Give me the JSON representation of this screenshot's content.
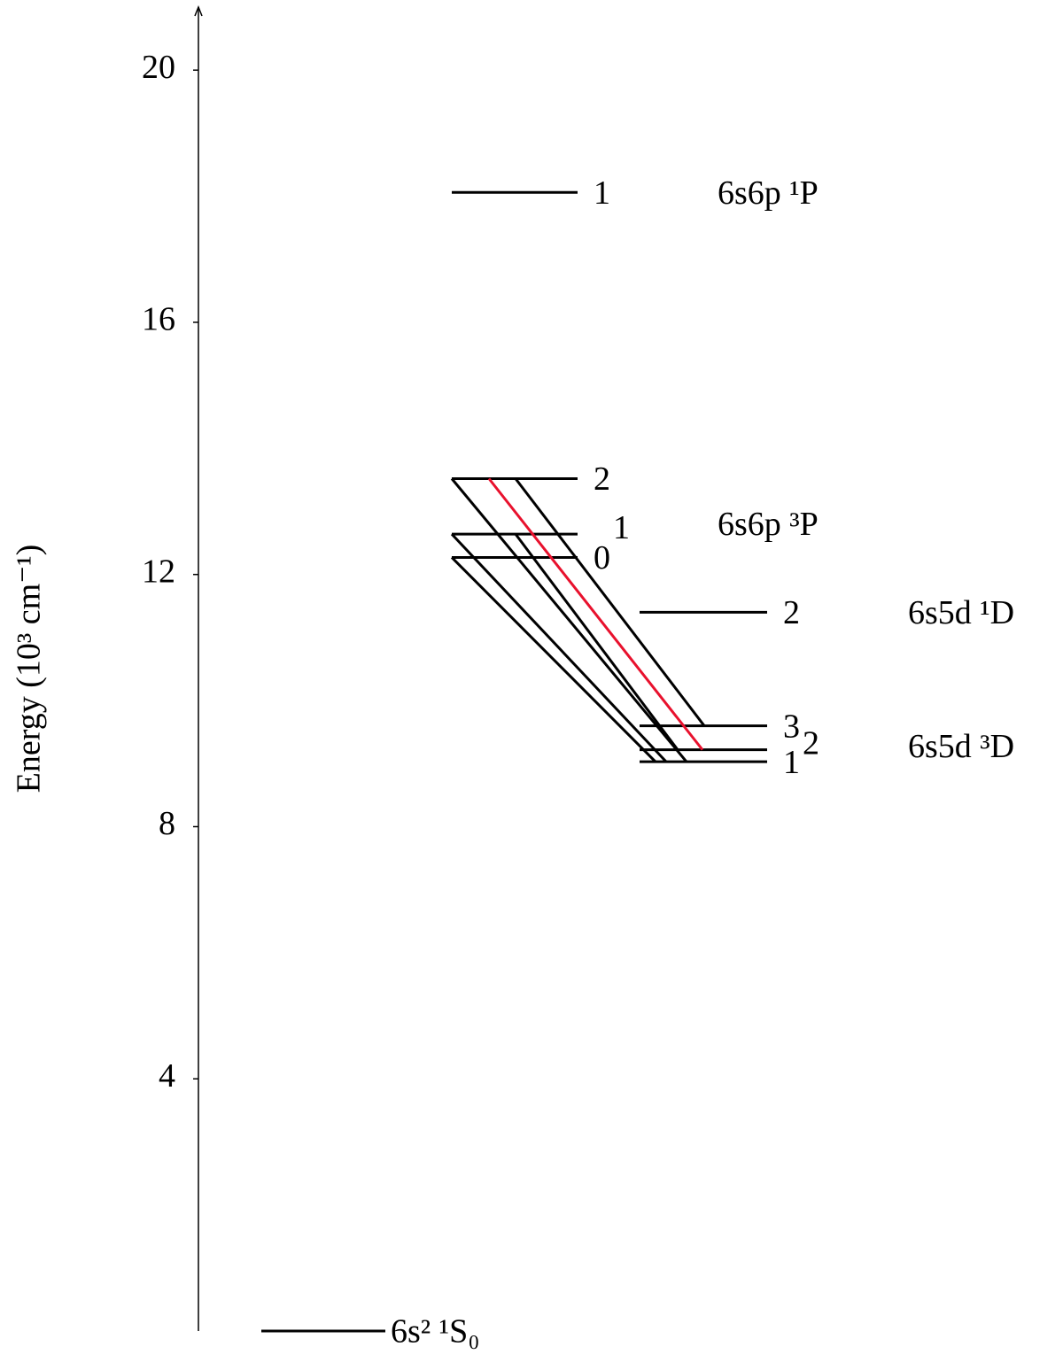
{
  "chart_data": {
    "type": "energy-levels",
    "y_label": "Energy (10³ cm⁻¹)",
    "ylim": [
      0,
      21
    ],
    "yticks": [
      4,
      8,
      12,
      16,
      20
    ],
    "terms": [
      {
        "label": "6s² ¹S₀",
        "levels": [
          {
            "energy": 0
          }
        ]
      },
      {
        "label": "6s6p ¹P",
        "levels": [
          {
            "J": 1,
            "energy": 18.06
          }
        ]
      },
      {
        "label": "6s6p ³P",
        "levels": [
          {
            "J": 2,
            "energy": 13.52
          },
          {
            "J": 1,
            "energy": 12.64
          },
          {
            "J": 0,
            "energy": 12.27
          }
        ]
      },
      {
        "label": "6s5d ¹D",
        "levels": [
          {
            "J": 2,
            "energy": 11.4
          }
        ]
      },
      {
        "label": "6s5d ³D",
        "levels": [
          {
            "J": 3,
            "energy": 9.6
          },
          {
            "J": 2,
            "energy": 9.22
          },
          {
            "J": 1,
            "energy": 9.03
          }
        ]
      }
    ],
    "transitions": [
      {
        "from": [
          2,
          0
        ],
        "to": [
          4,
          0
        ],
        "color": "#000000"
      },
      {
        "from": [
          2,
          0
        ],
        "to": [
          4,
          1
        ],
        "color": "#e8112d"
      },
      {
        "from": [
          2,
          0
        ],
        "to": [
          4,
          2
        ],
        "color": "#000000"
      },
      {
        "from": [
          2,
          1
        ],
        "to": [
          4,
          1
        ],
        "color": "#000000"
      },
      {
        "from": [
          2,
          1
        ],
        "to": [
          4,
          2
        ],
        "color": "#000000"
      },
      {
        "from": [
          2,
          2
        ],
        "to": [
          4,
          2
        ],
        "color": "#000000"
      }
    ]
  }
}
